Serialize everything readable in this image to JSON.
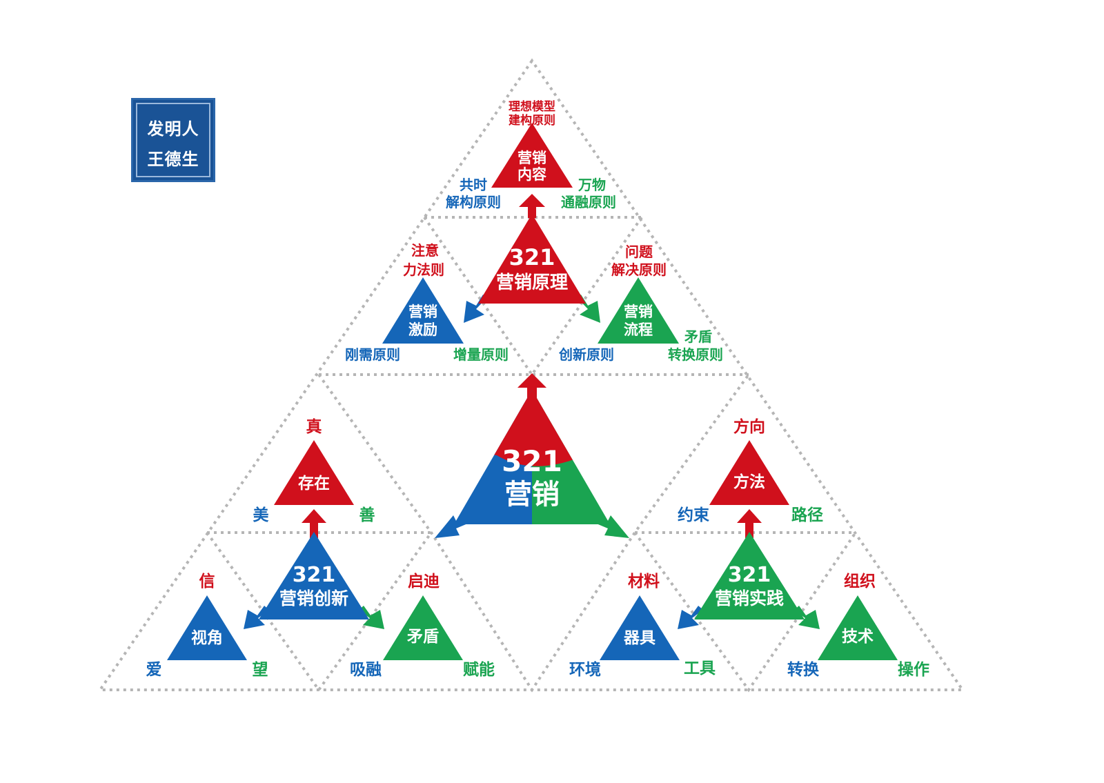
{
  "stamp": {
    "line1": "发明人",
    "line2": "王德生"
  },
  "colors": {
    "red": "#d0101c",
    "blue": "#1566b8",
    "green": "#1aa451",
    "dotted": "#b5b5b5"
  },
  "center": {
    "number": "321",
    "title": "营销"
  },
  "top_group": {
    "hub": {
      "number": "321",
      "title": "营销原理"
    },
    "top": {
      "line1": "营销",
      "line2": "内容",
      "label_top": [
        "理想模型",
        "建构原则"
      ],
      "label_left": [
        "共时",
        "解构原则"
      ],
      "label_right": [
        "万物",
        "通融原则"
      ]
    },
    "left": {
      "line1": "营销",
      "line2": "激励",
      "label_top": [
        "注意",
        "力法则"
      ],
      "label_left": "刚需原则",
      "label_right": "增量原则"
    },
    "right": {
      "line1": "营销",
      "line2": "流程",
      "label_top": [
        "问题",
        "解决原则"
      ],
      "label_left": "创新原则",
      "label_right": [
        "矛盾",
        "转换原则"
      ]
    }
  },
  "left_group": {
    "hub": {
      "number": "321",
      "title": "营销创新"
    },
    "top": {
      "text": "存在",
      "label_top": "真",
      "label_left": "美",
      "label_right": "善"
    },
    "left": {
      "text": "视角",
      "label_top": "信",
      "label_left": "爱",
      "label_right": "望"
    },
    "right": {
      "text": "矛盾",
      "label_top": "启迪",
      "label_left": "吸融",
      "label_right": "赋能"
    }
  },
  "right_group": {
    "hub": {
      "number": "321",
      "title": "营销实践"
    },
    "top": {
      "text": "方法",
      "label_top": "方向",
      "label_left": "约束",
      "label_right": "路径"
    },
    "left": {
      "text": "器具",
      "label_top": "材料",
      "label_left": "环境",
      "label_right": "工具"
    },
    "right": {
      "text": "技术",
      "label_top": "组织",
      "label_left": "转换",
      "label_right": "操作"
    }
  }
}
